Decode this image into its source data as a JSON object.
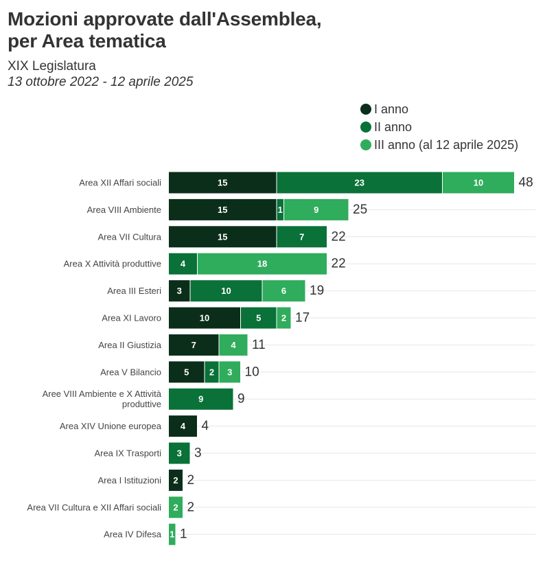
{
  "header": {
    "title_line1": "Mozioni approvate dall'Assemblea,",
    "title_line2": "per Area tematica",
    "subtitle": "XIX Legislatura",
    "date_range": "13 ottobre 2022 - 12 aprile 2025"
  },
  "chart_data": {
    "type": "bar",
    "orientation": "horizontal",
    "stacked": true,
    "categories": [
      "Area XII Affari sociali",
      "Area VIII Ambiente",
      "Area VII Cultura",
      "Area X Attività produttive",
      "Area III Esteri",
      "Area XI Lavoro",
      "Area II Giustizia",
      "Area V Bilancio",
      "Aree VIII Ambiente e X Attività produttive",
      "Area XIV Unione europea",
      "Area IX Trasporti",
      "Area I Istituzioni",
      "Area VII Cultura e XII Affari sociali",
      "Area IV Difesa"
    ],
    "series": [
      {
        "name": "I anno",
        "color": "#0b2e1a",
        "values": [
          15,
          15,
          15,
          0,
          3,
          10,
          7,
          5,
          0,
          4,
          0,
          2,
          0,
          0
        ]
      },
      {
        "name": "II anno",
        "color": "#0a7138",
        "values": [
          23,
          1,
          7,
          4,
          10,
          5,
          0,
          2,
          9,
          0,
          3,
          0,
          0,
          0
        ]
      },
      {
        "name": "III anno (al 12 aprile 2025)",
        "color": "#2fac5c",
        "values": [
          10,
          9,
          0,
          18,
          6,
          2,
          4,
          3,
          0,
          0,
          0,
          0,
          2,
          1
        ]
      }
    ],
    "totals": [
      48,
      25,
      22,
      22,
      19,
      17,
      11,
      10,
      9,
      4,
      3,
      2,
      2,
      1
    ],
    "xlim": [
      0,
      48
    ],
    "grid": true,
    "legend_position": "top-right"
  }
}
